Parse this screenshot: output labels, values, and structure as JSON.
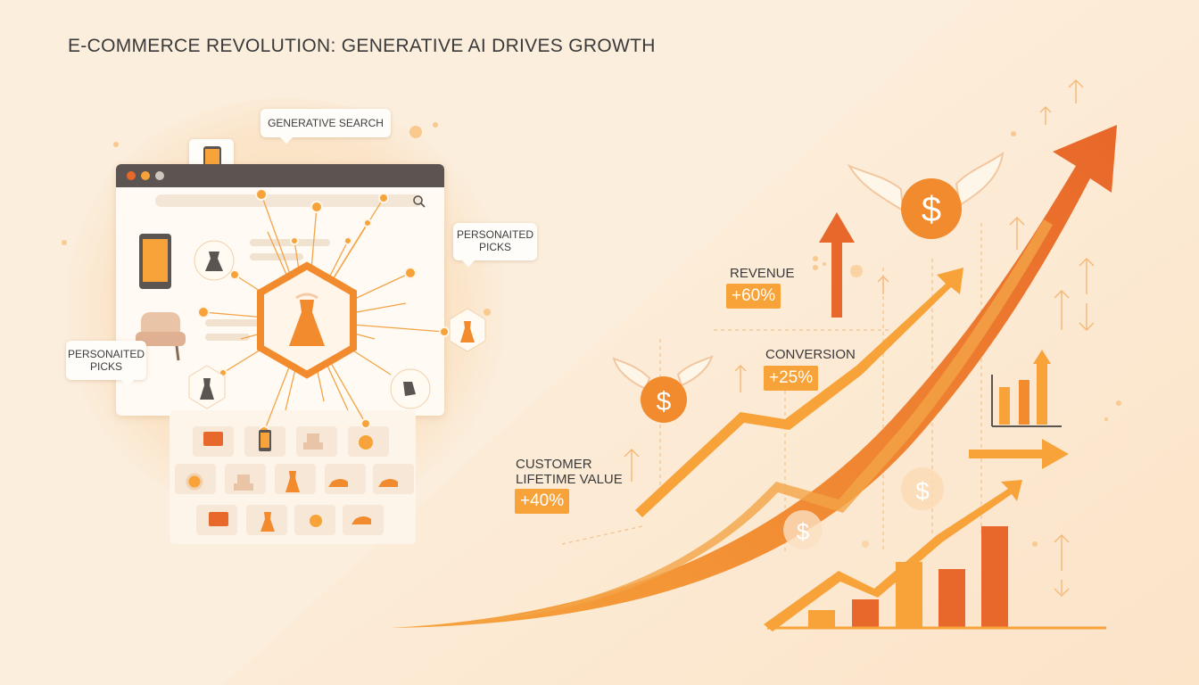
{
  "title": "E-COMMERCE REVOLUTION: GENERATIVE AI DRIVES GROWTH",
  "bubbles": {
    "generative_search": "GENERATIVE SEARCH",
    "personalized_top_line1": "PERSONAITED",
    "personalized_top_line2": "PICKS",
    "personalized_left_line1": "PERSONAITED",
    "personalized_left_line2": "PICKS"
  },
  "metrics": {
    "revenue": {
      "label": "REVENUE",
      "value": "+60%"
    },
    "conversion": {
      "label": "CONVERSION",
      "value": "+25%"
    },
    "clv": {
      "label_line1": "CUSTOMER",
      "label_line2": "LIFETIME VALUE",
      "value": "+40%"
    }
  },
  "icons": [
    "smartphone-icon",
    "dress-icon",
    "armchair-icon",
    "search-icon",
    "dollar-coin-icon",
    "winged-dollar-icon",
    "growth-arrow-icon",
    "bar-chart-icon",
    "right-arrow-icon",
    "up-arrow-icon",
    "sneaker-icon",
    "handbag-icon",
    "wallet-icon"
  ],
  "colors": {
    "background": "#fbeedd",
    "accent_orange": "#f7a33a",
    "deep_orange": "#e8672a",
    "browser_bar": "#5b5450"
  }
}
